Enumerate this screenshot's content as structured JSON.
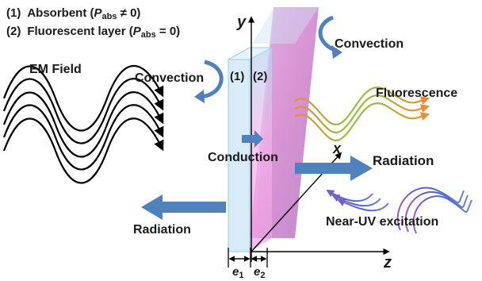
{
  "legend": {
    "item1": {
      "num": "(1)",
      "text": "Absorbent (",
      "sym": "P",
      "sub": "abs",
      "rel": " ≠ 0)"
    },
    "item2": {
      "num": "(2)",
      "text": "Fluorescent layer (",
      "sym": "P",
      "sub": "abs",
      "rel": " = 0)"
    }
  },
  "labels": {
    "em_field": "EM Field",
    "convection_left": "Convection",
    "convection_right": "Convection",
    "layer1": "(1)",
    "layer2": "(2)",
    "fluorescence": "Fluorescence",
    "conduction": "Conduction",
    "radiation_right": "Radiation",
    "radiation_left": "Radiation",
    "near_uv": "Near-UV excitation"
  },
  "axes": {
    "x": "x",
    "y": "y",
    "z": "z"
  },
  "thickness": {
    "e1": "e",
    "e1_sub": "1",
    "e2": "e",
    "e2_sub": "2"
  },
  "colors": {
    "arrow_blue": "#4f81bd",
    "arrow_blue_dark": "#3a6aa5",
    "layer1_fill": "#cfe6f3",
    "layer2_fill": "#d98fd3",
    "fluor_green": "#8dc63f",
    "fluor_orange": "#f28b30",
    "uv_blue": "#4a63d8",
    "uv_purple": "#9b59d0"
  }
}
